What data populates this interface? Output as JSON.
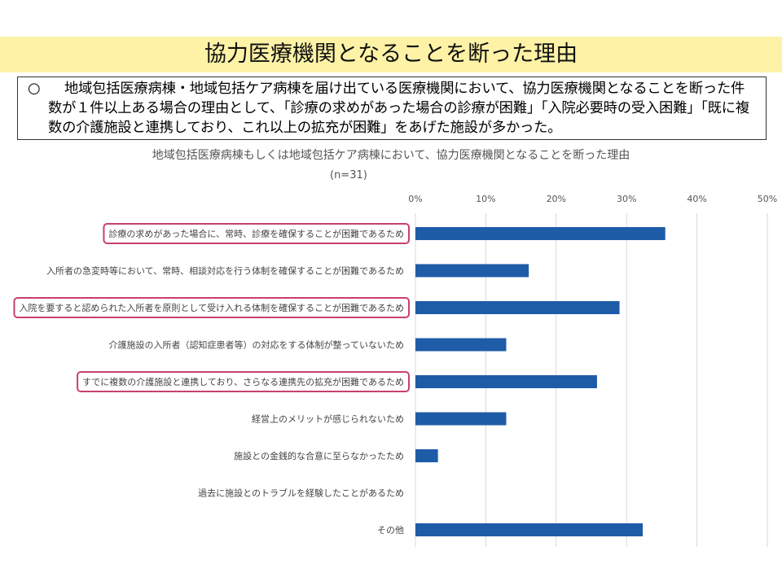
{
  "header": {
    "title": "協力医療機関となることを断った理由"
  },
  "summary": {
    "bullet": "○",
    "text": "地域包括医療病棟・地域包括ケア病棟を届け出ている医療機関において、協力医療機関となることを断った件数が１件以上ある場合の理由として、「診療の求めがあった場合の診療が困難」「入院必要時の受入困難」「既に複数の介護施設と連携しており、これ以上の拡充が困難」をあげた施設が多かった。"
  },
  "chart_data": {
    "type": "bar",
    "orientation": "horizontal",
    "title": "地域包括医療病棟もしくは地域包括ケア病棟において、協力医療機関となることを断った理由",
    "subtitle": "(n=31)",
    "xlim": [
      0,
      50
    ],
    "xticks": [
      "0%",
      "10%",
      "20%",
      "30%",
      "40%",
      "50%"
    ],
    "grid": true,
    "bar_color": "#1f5ca8",
    "highlight_color": "#c8406a",
    "categories": [
      "診療の求めがあった場合に、常時、診療を確保することが困難であるため",
      "入所者の急変時等において、常時、相談対応を行う体制を確保することが困難であるため",
      "入院を要すると認められた入所者を原則として受け入れる体制を確保することが困難であるため",
      "介護施設の入所者（認知症患者等）の対応をする体制が整っていないため",
      "すでに複数の介護施設と連携しており、さらなる連携先の拡充が困難であるため",
      "経営上のメリットが感じられないため",
      "施設との金銭的な合意に至らなかったため",
      "過去に施設とのトラブルを経験したことがあるため",
      "その他"
    ],
    "values": [
      35.5,
      16.1,
      29.0,
      12.9,
      25.8,
      12.9,
      3.2,
      0.0,
      32.3
    ],
    "highlighted": [
      true,
      false,
      true,
      false,
      true,
      false,
      false,
      false,
      false
    ]
  }
}
